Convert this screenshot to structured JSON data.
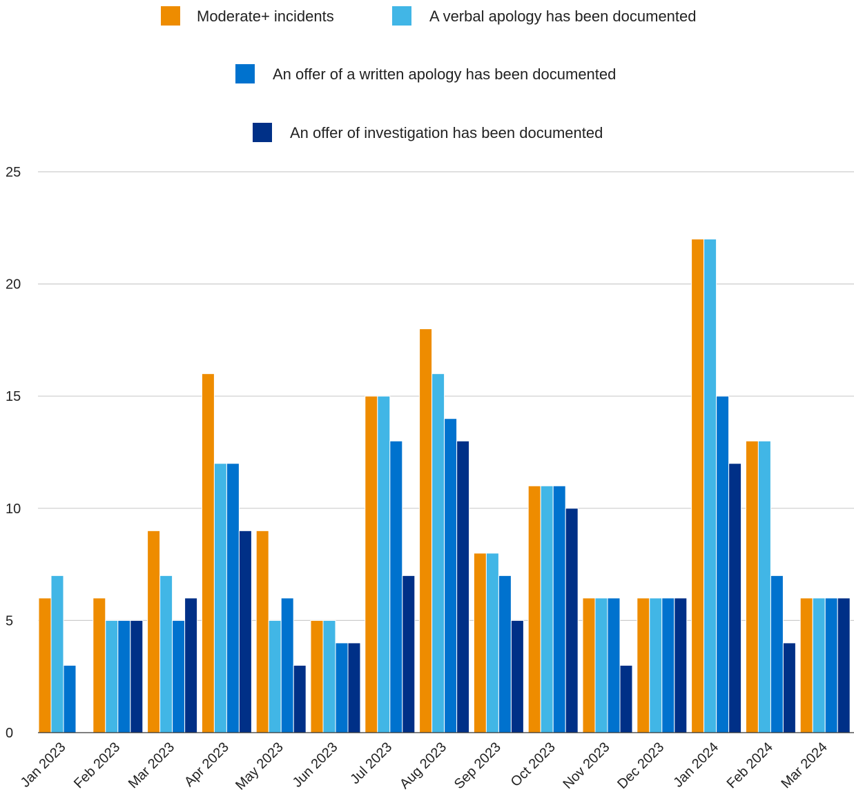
{
  "chart_data": {
    "type": "bar",
    "title": "",
    "xlabel": "",
    "ylabel": "",
    "ylim": [
      0,
      25
    ],
    "yticks": [
      0,
      5,
      10,
      15,
      20,
      25
    ],
    "grid": true,
    "legend_position": "top",
    "categories": [
      "Jan 2023",
      "Feb 2023",
      "Mar 2023",
      "Apr 2023",
      "May 2023",
      "Jun 2023",
      "Jul 2023",
      "Aug 2023",
      "Sep 2023",
      "Oct 2023",
      "Nov 2023",
      "Dec 2023",
      "Jan 2024",
      "Feb 2024",
      "Mar 2024"
    ],
    "series": [
      {
        "name": "Moderate+ incidents",
        "color": "#ee8c00",
        "values": [
          6,
          6,
          9,
          16,
          9,
          5,
          15,
          18,
          8,
          11,
          6,
          6,
          22,
          13,
          6
        ]
      },
      {
        "name": "A verbal apology has been documented",
        "color": "#41b6e6",
        "values": [
          7,
          5,
          7,
          12,
          5,
          5,
          15,
          16,
          8,
          11,
          6,
          6,
          22,
          13,
          6
        ]
      },
      {
        "name": "An offer of a written apology has been documented",
        "color": "#0072ce",
        "values": [
          3,
          5,
          5,
          12,
          6,
          4,
          13,
          14,
          7,
          11,
          6,
          6,
          15,
          7,
          6
        ]
      },
      {
        "name": "An offer of investigation has been documented",
        "color": "#003087",
        "values": [
          0,
          5,
          6,
          9,
          3,
          4,
          7,
          13,
          5,
          10,
          3,
          6,
          12,
          4,
          6
        ]
      }
    ]
  }
}
